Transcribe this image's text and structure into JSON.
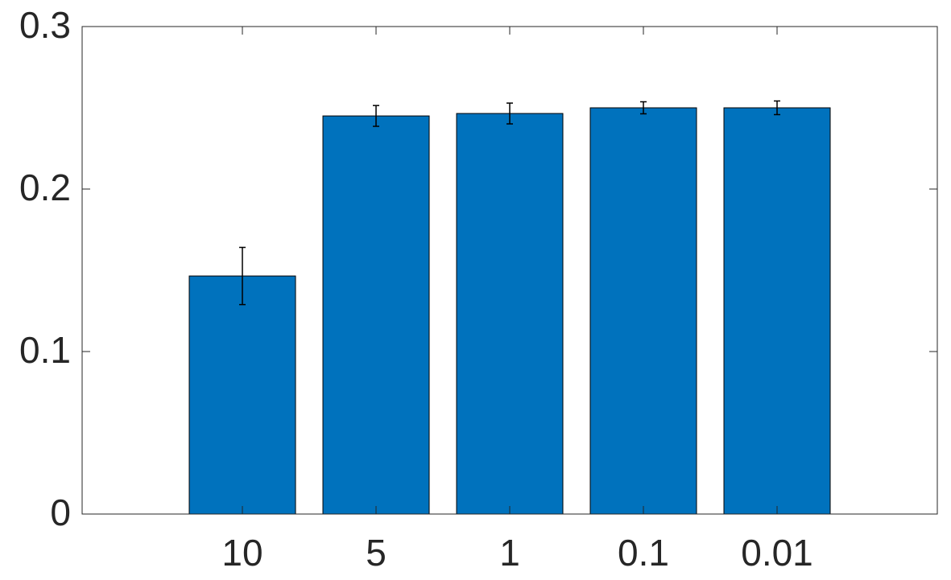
{
  "chart_data": {
    "type": "bar",
    "categories": [
      "10",
      "5",
      "1",
      "0.1",
      "0.01"
    ],
    "values": [
      0.1465,
      0.245,
      0.2465,
      0.25,
      0.25
    ],
    "errors": [
      0.0176,
      0.0064,
      0.0064,
      0.0037,
      0.0042
    ],
    "color": "#0072bd",
    "ylim": [
      0,
      0.3
    ],
    "yticks": [
      0,
      0.1,
      0.2,
      0.3
    ],
    "grid": false
  }
}
